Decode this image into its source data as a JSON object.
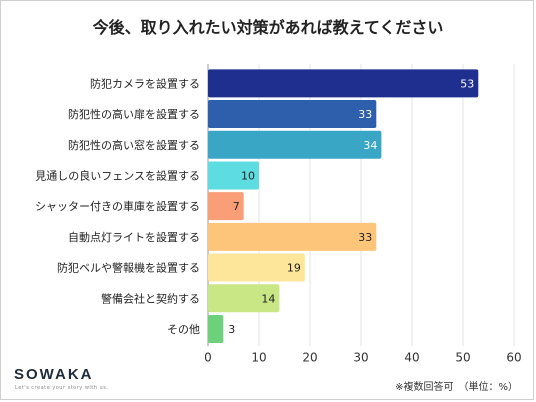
{
  "title": "今後、取り入れたい対策があれば教えてください",
  "logo": {
    "text": "SOWAKA",
    "tagline": "Let's create your story with us."
  },
  "note": "※複数回答可　（単位：%）",
  "chart_data": {
    "type": "bar",
    "orientation": "horizontal",
    "categories": [
      "防犯カメラを設置する",
      "防犯性の高い扉を設置する",
      "防犯性の高い窓を設置する",
      "見通しの良いフェンスを設置する",
      "シャッター付きの車庫を設置する",
      "自動点灯ライトを設置する",
      "防犯ベルや警報機を設置する",
      "警備会社と契約する",
      "その他"
    ],
    "values": [
      53,
      33,
      34,
      10,
      7,
      33,
      19,
      14,
      3
    ],
    "colors": [
      "#1f2f8f",
      "#2e5fad",
      "#3aa6c6",
      "#5ddde1",
      "#f99e76",
      "#fdc579",
      "#fde69a",
      "#c9e785",
      "#6dd07a"
    ],
    "xlim": [
      0,
      60
    ],
    "xticks": [
      0,
      10,
      20,
      30,
      40,
      50,
      60
    ],
    "grid": true
  }
}
